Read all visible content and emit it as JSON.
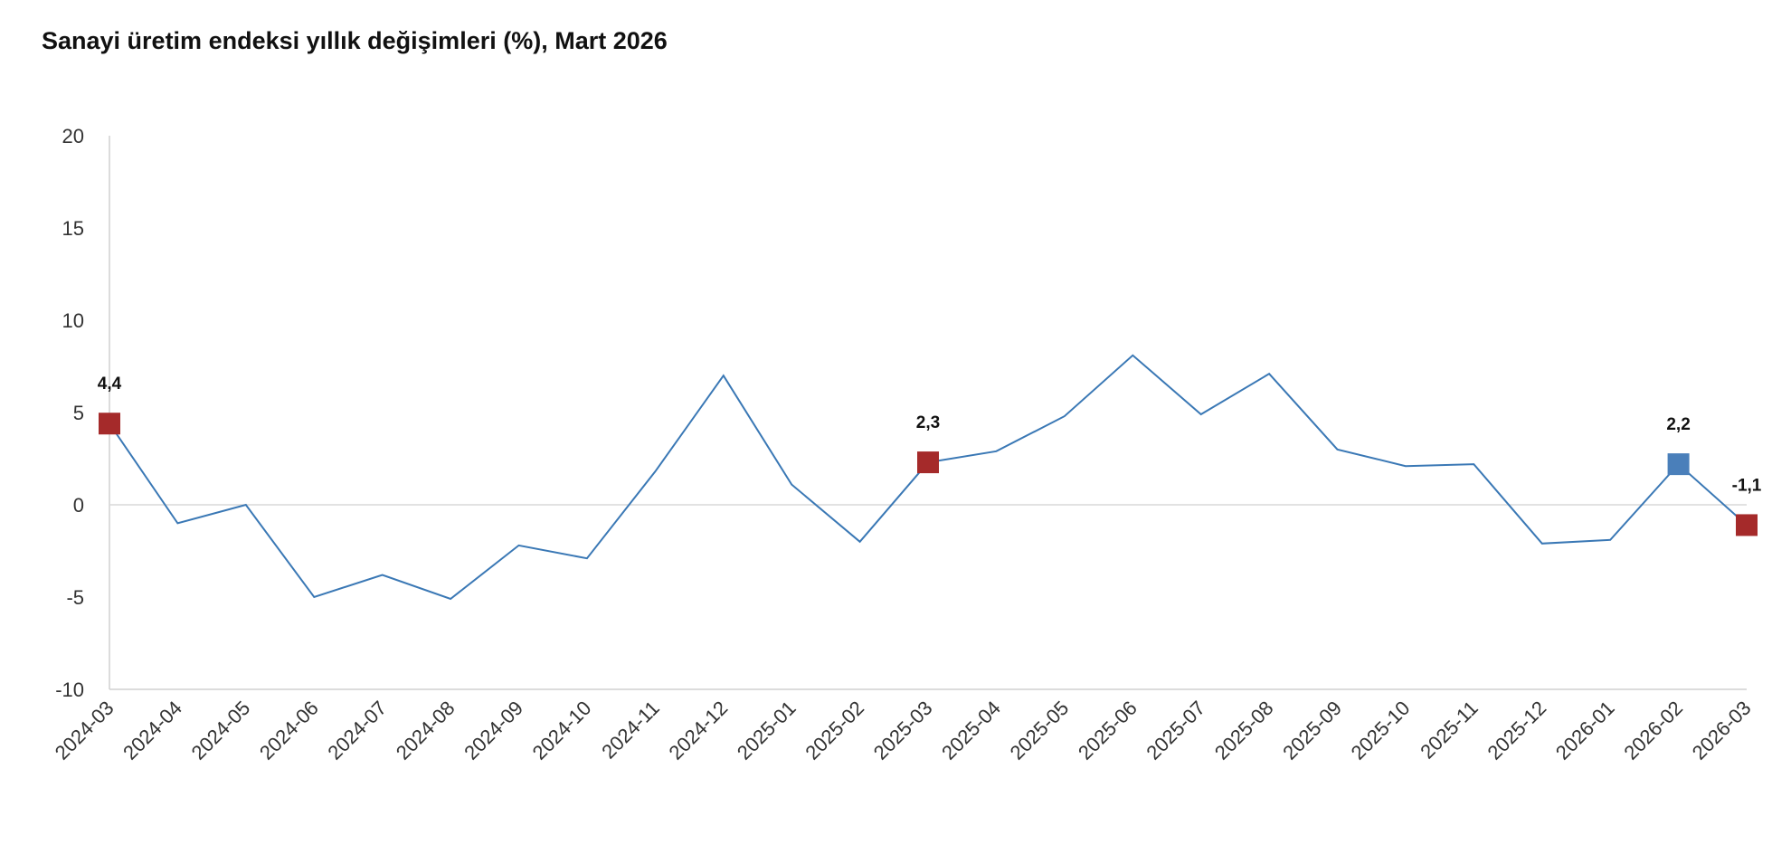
{
  "colors": {
    "line": "#3a78b5",
    "highlight": "#a52a2a",
    "current": "#4a7fba",
    "zero_line": "#d9d9d9",
    "axis": "#d0d0d0"
  },
  "chart_data": {
    "type": "line",
    "title": "Sanayi üretim endeksi yıllık değişimleri (%), Mart 2026",
    "xlabel": "",
    "ylabel": "",
    "ylim": [
      -10,
      20
    ],
    "y_ticks": [
      20,
      15,
      10,
      5,
      0,
      -5,
      -10
    ],
    "grid": false,
    "categories": [
      "2024-03",
      "2024-04",
      "2024-05",
      "2024-06",
      "2024-07",
      "2024-08",
      "2024-09",
      "2024-10",
      "2024-11",
      "2024-12",
      "2025-01",
      "2025-02",
      "2025-03",
      "2025-04",
      "2025-05",
      "2025-06",
      "2025-07",
      "2025-08",
      "2025-09",
      "2025-10",
      "2025-11",
      "2025-12",
      "2026-01",
      "2026-02",
      "2026-03"
    ],
    "series": [
      {
        "values": [
          4.4,
          -1.0,
          0.0,
          -5.0,
          -3.8,
          -5.1,
          -2.2,
          -2.9,
          1.8,
          7.0,
          1.1,
          -2.0,
          2.3,
          2.9,
          4.8,
          8.1,
          4.9,
          7.1,
          3.0,
          2.1,
          2.2,
          -2.1,
          -1.9,
          2.2,
          -1.1
        ]
      }
    ],
    "markers": [
      {
        "index": 0,
        "label": "4,4",
        "color": "#a52a2a"
      },
      {
        "index": 12,
        "label": "2,3",
        "color": "#a52a2a"
      },
      {
        "index": 23,
        "label": "2,2",
        "color": "#4a7fba"
      },
      {
        "index": 24,
        "label": "-1,1",
        "color": "#a52a2a"
      }
    ]
  }
}
